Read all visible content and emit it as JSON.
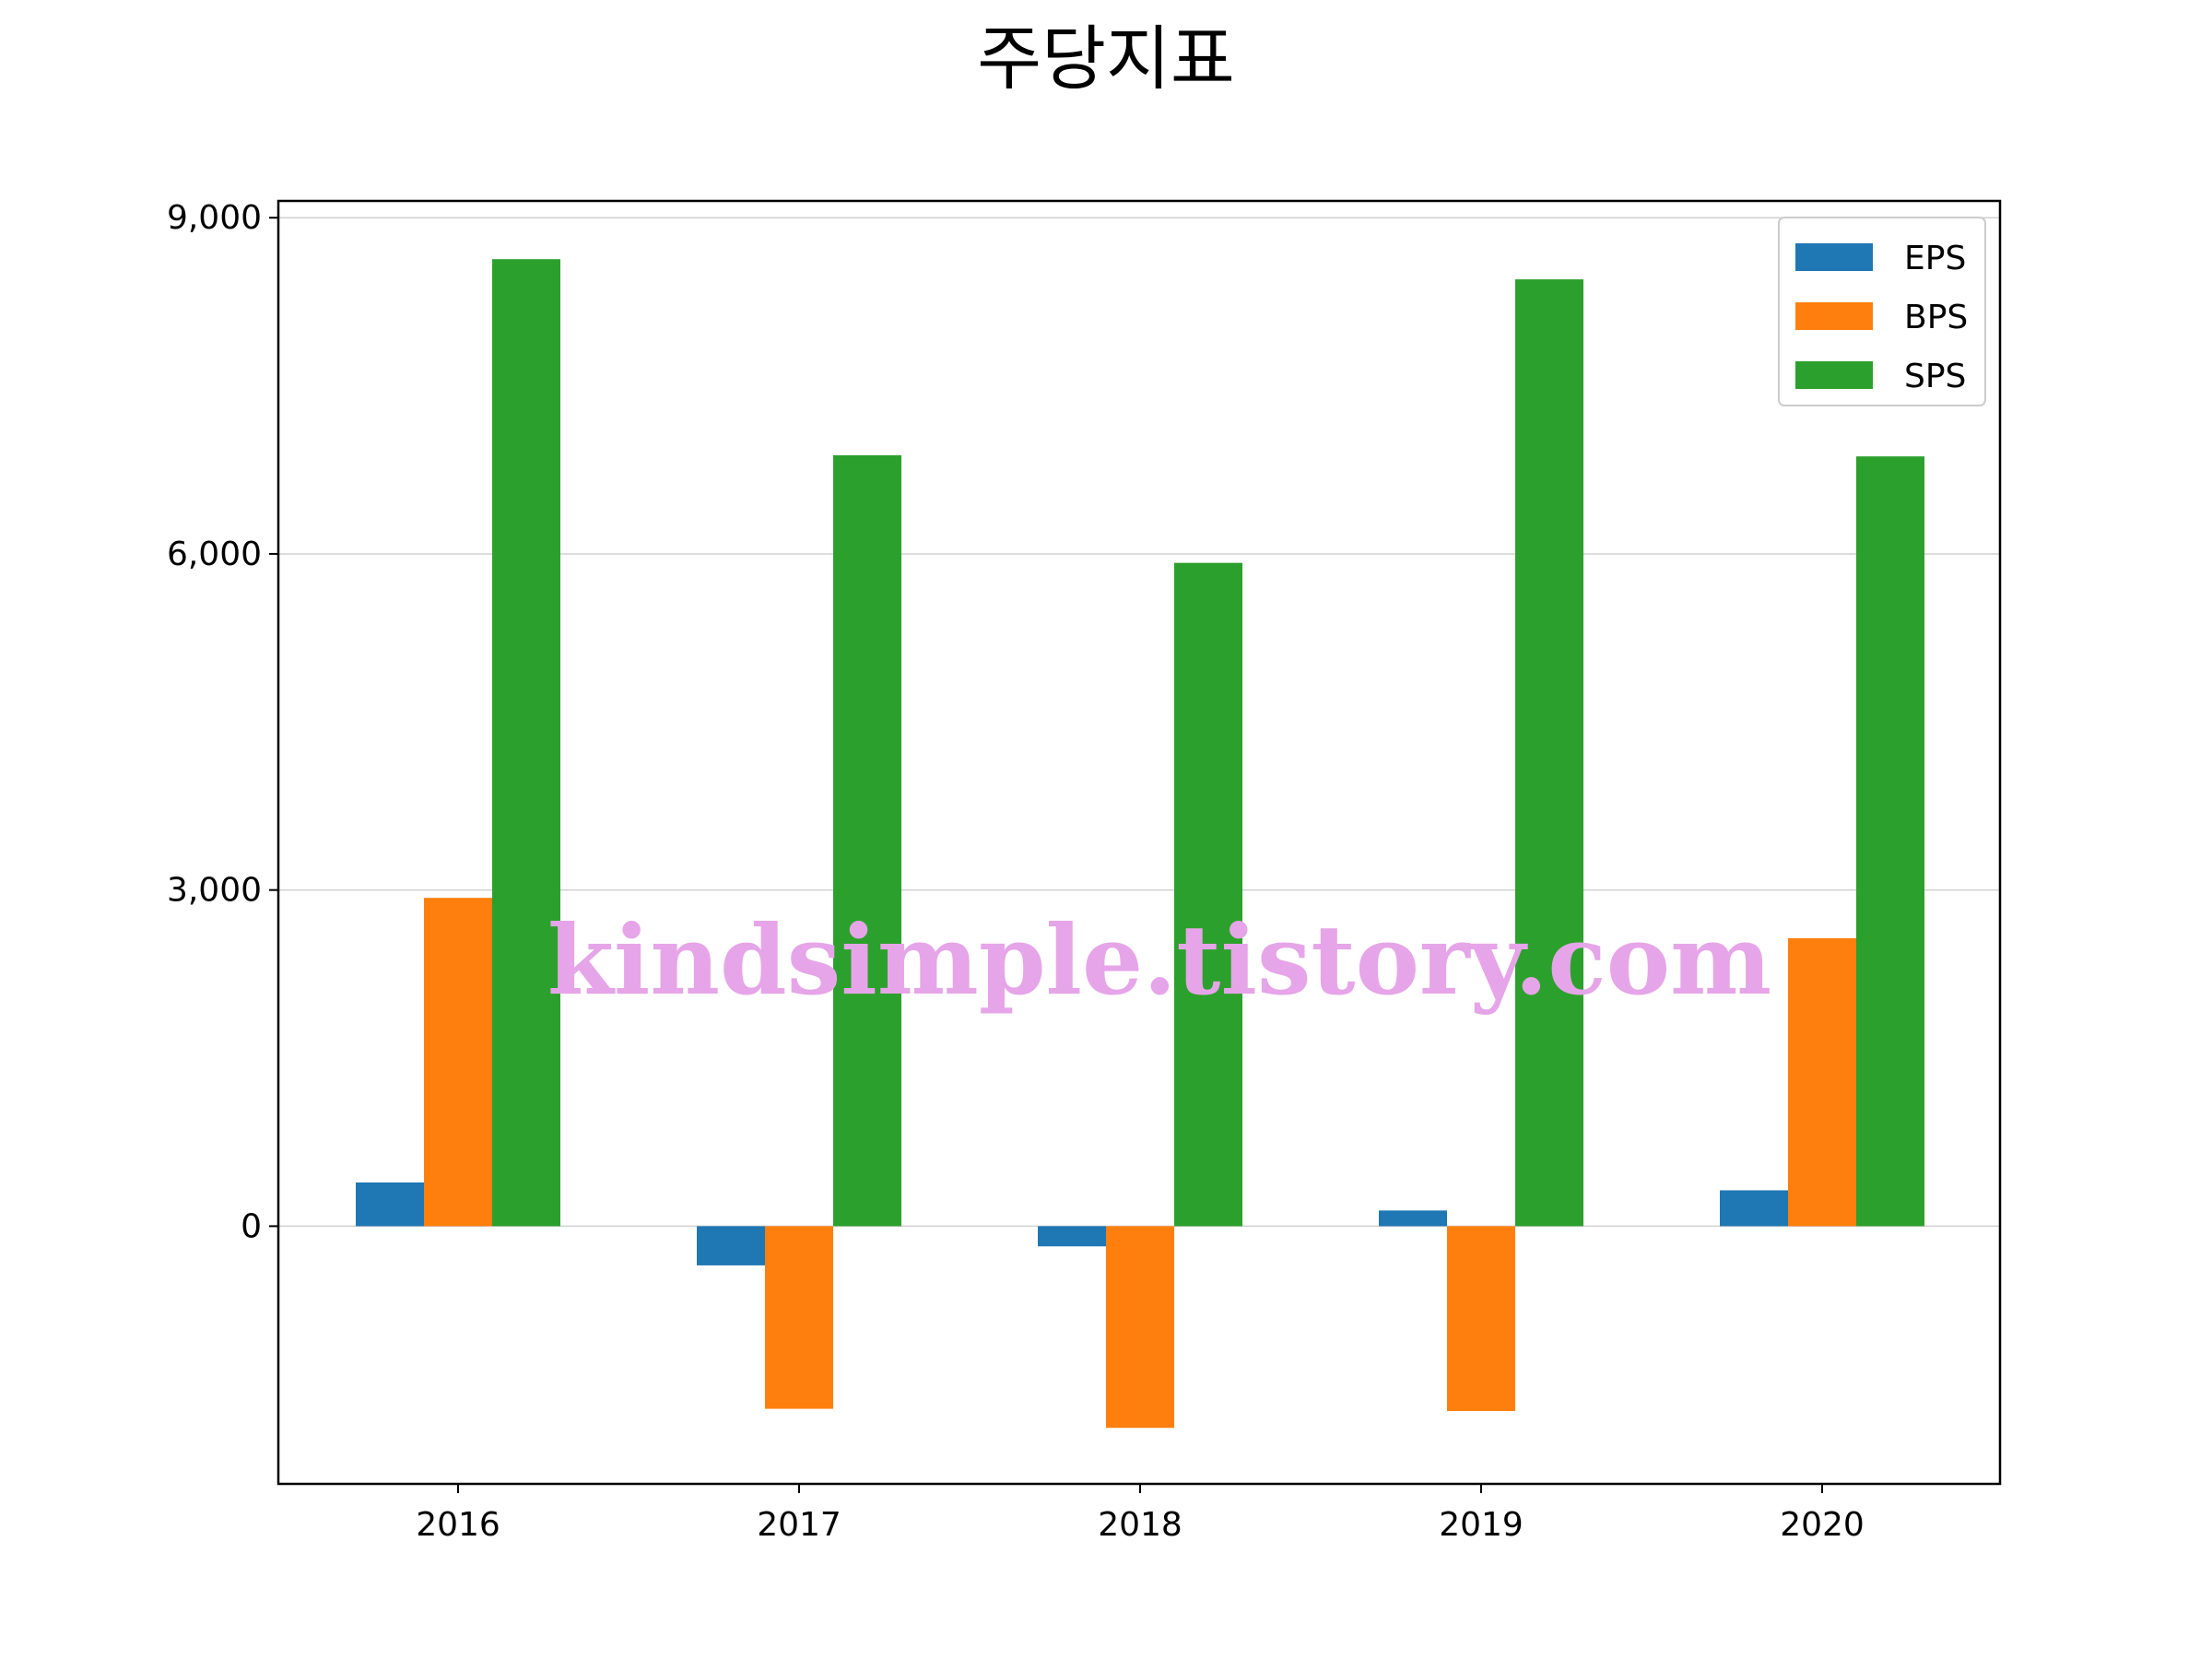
{
  "chart_data": {
    "type": "bar",
    "title": "주당지표",
    "categories": [
      "2016",
      "2017",
      "2018",
      "2019",
      "2020"
    ],
    "series": [
      {
        "name": "EPS",
        "color": "#1f77b4",
        "values": [
          390,
          -350,
          -180,
          140,
          320
        ]
      },
      {
        "name": "BPS",
        "color": "#ff7f0e",
        "values": [
          2930,
          -1630,
          -1800,
          -1650,
          2570
        ]
      },
      {
        "name": "SPS",
        "color": "#2ca02c",
        "values": [
          8630,
          6880,
          5920,
          8450,
          6870
        ]
      }
    ],
    "ylim": [
      -2300,
      9150
    ],
    "yticks": [
      0,
      3000,
      6000,
      9000
    ],
    "ytick_labels": [
      "0",
      "3,000",
      "6,000",
      "9,000"
    ],
    "grid": "horizontal",
    "legend_position": "top-right"
  },
  "watermark": "kindsimple.tistory.com"
}
